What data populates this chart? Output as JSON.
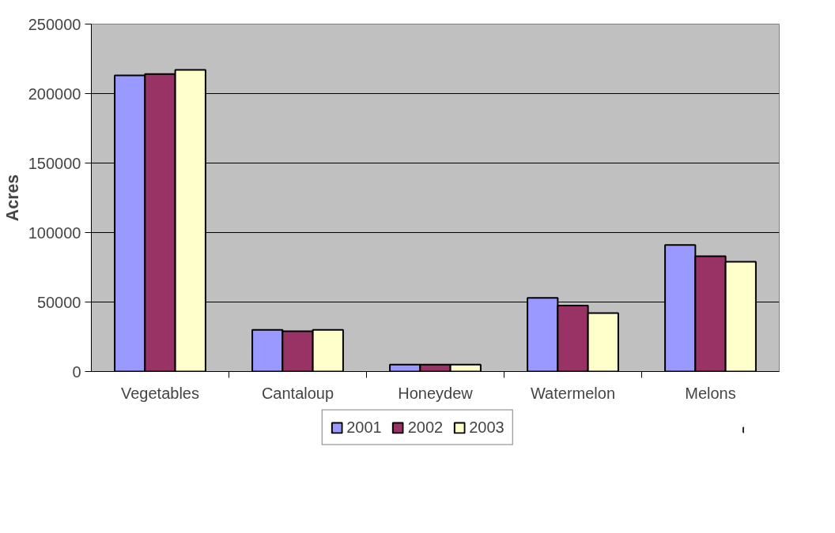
{
  "chart_data": {
    "type": "bar",
    "ylabel": "Acres",
    "categories": [
      "Vegetables",
      "Cantaloup",
      "Honeydew",
      "Watermelon",
      "Melons"
    ],
    "series": [
      {
        "name": "2001",
        "color": "#9999ff",
        "values": [
          213000,
          30000,
          5000,
          53000,
          91000
        ]
      },
      {
        "name": "2002",
        "color": "#993366",
        "values": [
          214000,
          29000,
          5000,
          47500,
          83000
        ]
      },
      {
        "name": "2003",
        "color": "#ffffcc",
        "values": [
          217000,
          30000,
          5000,
          42000,
          79000
        ]
      }
    ],
    "ylim": [
      0,
      250000
    ],
    "yticks": [
      0,
      50000,
      100000,
      150000,
      200000,
      250000
    ],
    "grid": "y",
    "legend": "bottom"
  }
}
